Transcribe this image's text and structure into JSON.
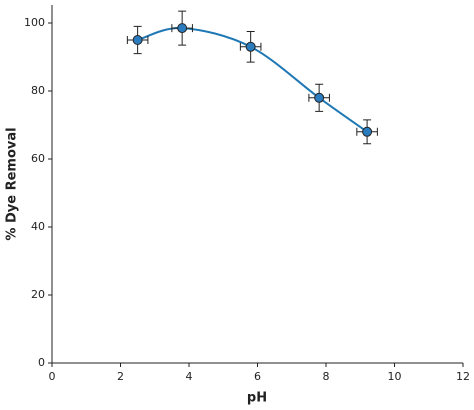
{
  "chart_data": {
    "type": "scatter",
    "xlabel": "pH",
    "ylabel": "% Dye Removal",
    "x": [
      2.5,
      3.8,
      5.8,
      7.8,
      9.2
    ],
    "values": [
      95,
      98.5,
      93,
      78,
      68
    ],
    "yerr": [
      4,
      5,
      4.5,
      4,
      3.5
    ],
    "xerr": [
      0.3,
      0.3,
      0.3,
      0.3,
      0.3
    ],
    "color": "#2b7bbf",
    "line_color": "#1f78b4",
    "xlim": [
      0,
      12
    ],
    "ylim": [
      0,
      105
    ],
    "xticks": [
      0,
      2,
      4,
      6,
      8,
      10,
      12
    ],
    "yticks": [
      0,
      20,
      40,
      60,
      80,
      100
    ],
    "grid": false
  }
}
